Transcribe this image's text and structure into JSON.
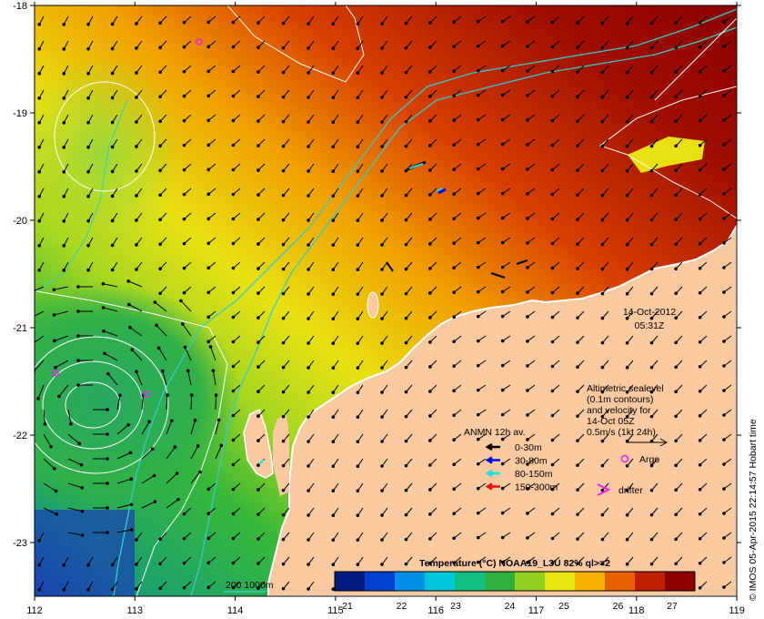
{
  "map": {
    "lon_ticks": [
      "112",
      "113",
      "114",
      "115",
      "116",
      "117",
      "118",
      "119"
    ],
    "lat_ticks": [
      "-18",
      "-19",
      "-20",
      "-21",
      "-22",
      "-23"
    ],
    "timestamp": {
      "date": "14-Oct-2012",
      "time": "05:31Z"
    },
    "credit": "© IMOS 05-Apr-2015 22:14:57 Hobart time",
    "altimetry_note": [
      "Altimetric sealevel",
      "(0.1m contours)",
      "and velocity for",
      "14-Oct 05Z",
      "0.5m/s (1kt 24h)"
    ],
    "bathymetry_label": "200  1000m"
  },
  "legend": {
    "title": "ANMN 12h av.",
    "items": [
      {
        "label": "0-30m",
        "color": "#000000"
      },
      {
        "label": "30-80m",
        "color": "#0000ee"
      },
      {
        "label": "80-150m",
        "color": "#22dddd"
      },
      {
        "label": "150-300m",
        "color": "#ee1111"
      }
    ],
    "argo_label": "Argo",
    "drifter_label": "drifter"
  },
  "colorbar": {
    "title": "Temperature (°C) NOAA19_L3U 82% ql>=2",
    "tick_labels": [
      "21",
      "22",
      "23",
      "24",
      "25",
      "26",
      "27"
    ],
    "colors": [
      "#001a80",
      "#0040d0",
      "#0090e8",
      "#00c8d8",
      "#10c080",
      "#30b040",
      "#90d020",
      "#e8e810",
      "#f8b000",
      "#e86000",
      "#c02000",
      "#900000"
    ]
  },
  "colors": {
    "land": "#f9c9a0",
    "coast": "#ffffff",
    "argo": "#ee22ee",
    "contour": "#ffffff",
    "isobath": "#33cccc"
  }
}
